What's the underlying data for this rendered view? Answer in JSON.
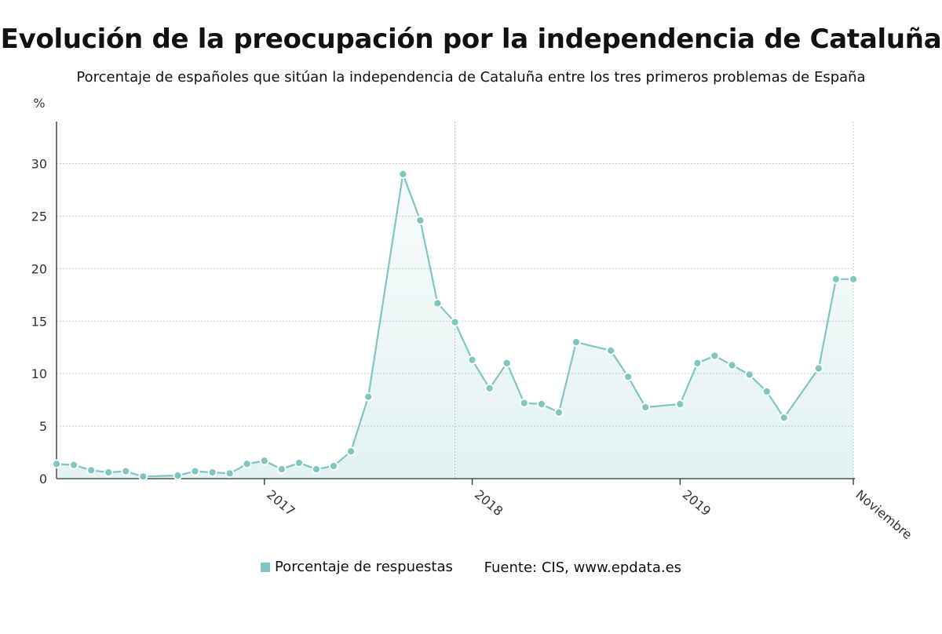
{
  "chart_data": {
    "type": "area",
    "title": "Evolución de la preocupación por la independencia de Cataluña",
    "subtitle": "Porcentaje de españoles que sitúan la independencia de Cataluña entre los tres primeros problemas de España",
    "ylabel": "%",
    "ylim": [
      0,
      34
    ],
    "yticks": [
      0,
      5,
      10,
      15,
      20,
      25,
      30
    ],
    "xlim": [
      "2016-01",
      "2019-11"
    ],
    "xticks": [
      {
        "x": "2017-01",
        "label": "2017"
      },
      {
        "x": "2018-01",
        "label": "2018"
      },
      {
        "x": "2019-01",
        "label": "2019"
      },
      {
        "x": "2019-11",
        "label": "Noviembre"
      }
    ],
    "vgrid": [
      "2017-12",
      "2019-11"
    ],
    "grid": true,
    "legend_position": "bottom",
    "series": [
      {
        "name": "Porcentaje de respuestas",
        "color": "#7fc6c1",
        "x": [
          "2016-01",
          "2016-02",
          "2016-03",
          "2016-04",
          "2016-05",
          "2016-06",
          "2016-08",
          "2016-09",
          "2016-10",
          "2016-11",
          "2016-12",
          "2017-01",
          "2017-02",
          "2017-03",
          "2017-04",
          "2017-05",
          "2017-06",
          "2017-07",
          "2017-09",
          "2017-10",
          "2017-11",
          "2017-12",
          "2018-01",
          "2018-02",
          "2018-03",
          "2018-04",
          "2018-05",
          "2018-06",
          "2018-07",
          "2018-09",
          "2018-10",
          "2018-11",
          "2019-01",
          "2019-02",
          "2019-03",
          "2019-04",
          "2019-05",
          "2019-06",
          "2019-07",
          "2019-09",
          "2019-10",
          "2019-11"
        ],
        "values": [
          1.4,
          1.3,
          0.8,
          0.6,
          0.7,
          0.2,
          0.3,
          0.7,
          0.6,
          0.5,
          1.4,
          1.7,
          0.9,
          1.5,
          0.9,
          1.2,
          2.6,
          7.8,
          29.0,
          24.6,
          16.7,
          14.9,
          11.3,
          8.6,
          11.0,
          7.2,
          7.1,
          6.3,
          13.0,
          12.2,
          9.7,
          6.8,
          7.1,
          11.0,
          11.7,
          10.8,
          9.9,
          8.3,
          5.8,
          10.5,
          19.0,
          19.0
        ]
      }
    ],
    "source": "Fuente: CIS, www.epdata.es"
  }
}
